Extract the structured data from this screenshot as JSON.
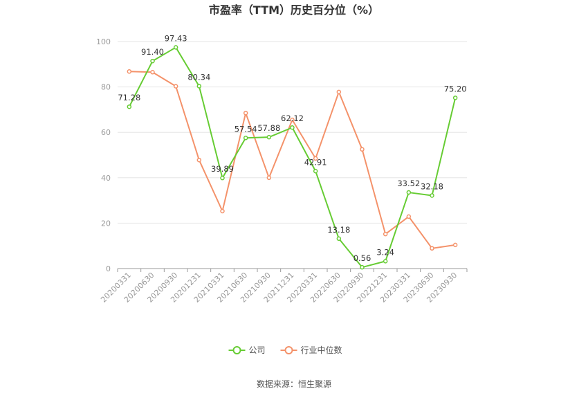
{
  "chart_data": {
    "type": "line",
    "title": "市盈率（TTM）历史百分位（%）",
    "xlabel": "",
    "ylabel": "",
    "ylim": [
      0,
      100
    ],
    "yticks": [
      0,
      20,
      40,
      60,
      80,
      100
    ],
    "grid": true,
    "legend_position": "bottom",
    "categories": [
      "20200331",
      "20200630",
      "20200930",
      "20201231",
      "20210331",
      "20210630",
      "20210930",
      "20211231",
      "20220331",
      "20220630",
      "20220930",
      "20221231",
      "20230331",
      "20230630",
      "20230930"
    ],
    "series": [
      {
        "name": "公司",
        "color": "#66cc33",
        "show_labels": true,
        "values": [
          71.28,
          91.4,
          97.43,
          80.34,
          39.89,
          57.54,
          57.88,
          62.12,
          42.91,
          13.18,
          0.56,
          3.24,
          33.52,
          32.18,
          75.2
        ],
        "labels": [
          "71.28",
          "91.40",
          "97.43",
          "80.34",
          "39.89",
          "57.54",
          "57.88",
          "62.12",
          "42.91",
          "13.18",
          "0.56",
          "3.24",
          "33.52",
          "32.18",
          "75.20"
        ]
      },
      {
        "name": "行业中位数",
        "color": "#f4926a",
        "show_labels": false,
        "values": [
          86.8,
          86.5,
          80.3,
          47.8,
          25.3,
          68.5,
          40.0,
          65.5,
          48.5,
          77.8,
          52.5,
          15.2,
          22.9,
          8.9,
          10.4
        ]
      }
    ]
  },
  "source": "数据来源：恒生聚源"
}
